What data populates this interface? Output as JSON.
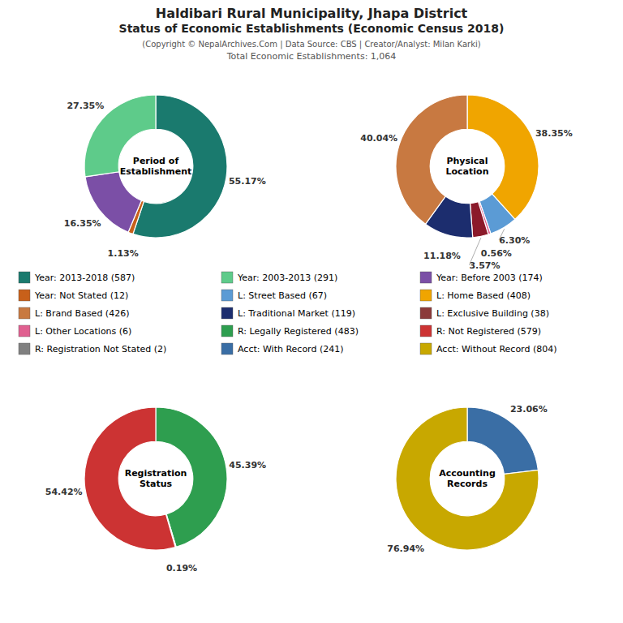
{
  "title": [
    "Haldibari Rural Municipality, Jhapa District",
    "Status of Economic Establishments (Economic Census 2018)"
  ],
  "subtitle": [
    "(Copyright © NepalArchives.Com | Data Source: CBS | Creator/Analyst: Milan Karki)",
    "Total Economic Establishments: 1,064"
  ],
  "chart_data": [
    {
      "type": "pie",
      "title": "Period of\nEstablishment",
      "values": [
        55.17,
        1.13,
        16.35,
        27.35
      ],
      "value_labels": [
        "55.17%",
        "1.13%",
        "16.35%",
        "27.35%"
      ],
      "colors": [
        "#1a7a6e",
        "#c8601a",
        "#7b4fa6",
        "#5ecb8a"
      ],
      "data_labels": true
    },
    {
      "type": "pie",
      "title": "Physical\nLocation",
      "values": [
        38.35,
        6.3,
        0.56,
        3.57,
        11.18,
        40.04
      ],
      "value_labels": [
        "38.35%",
        "6.30%",
        "0.56%",
        "3.57%",
        "11.18%",
        "40.04%"
      ],
      "colors": [
        "#f0a500",
        "#5b9bd5",
        "#e06090",
        "#8b1a2a",
        "#1c2d6e",
        "#c87941"
      ],
      "data_labels": true
    },
    {
      "type": "pie",
      "title": "Registration\nStatus",
      "values": [
        45.39,
        0.19,
        54.42
      ],
      "value_labels": [
        "45.39%",
        "0.19%",
        "54.42%"
      ],
      "colors": [
        "#2e9e4f",
        "#808080",
        "#cc3333"
      ],
      "data_labels": true
    },
    {
      "type": "pie",
      "title": "Accounting\nRecords",
      "values": [
        23.06,
        76.94
      ],
      "value_labels": [
        "23.06%",
        "76.94%"
      ],
      "colors": [
        "#3a6ea5",
        "#c8a800"
      ],
      "data_labels": true
    }
  ],
  "legend_items": [
    {
      "name": "Year: 2013-2018 (587)",
      "color": "#1a7a6e"
    },
    {
      "name": "Year: 2003-2013 (291)",
      "color": "#5ecb8a"
    },
    {
      "name": "Year: Before 2003 (174)",
      "color": "#7b4fa6"
    },
    {
      "name": "Year: Not Stated (12)",
      "color": "#c8601a"
    },
    {
      "name": "L: Street Based (67)",
      "color": "#5b9bd5"
    },
    {
      "name": "L: Home Based (408)",
      "color": "#f0a500"
    },
    {
      "name": "L: Brand Based (426)",
      "color": "#c87941"
    },
    {
      "name": "L: Traditional Market (119)",
      "color": "#1c2d6e"
    },
    {
      "name": "L: Exclusive Building (38)",
      "color": "#8b3a3a"
    },
    {
      "name": "L: Other Locations (6)",
      "color": "#e06090"
    },
    {
      "name": "R: Legally Registered (483)",
      "color": "#2e9e4f"
    },
    {
      "name": "R: Not Registered (579)",
      "color": "#cc3333"
    },
    {
      "name": "R: Registration Not Stated (2)",
      "color": "#808080"
    },
    {
      "name": "Acct: With Record (241)",
      "color": "#3a6ea5"
    },
    {
      "name": "Acct: Without Record (804)",
      "color": "#c8a800"
    }
  ]
}
